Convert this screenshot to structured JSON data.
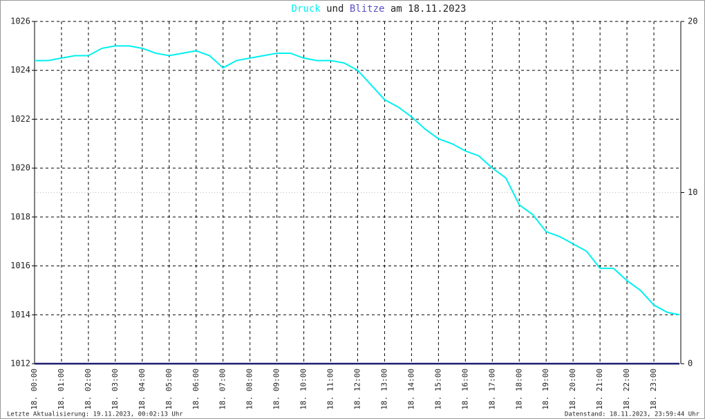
{
  "chart_data": {
    "type": "line",
    "title_connector": "und",
    "title_date": "am 18.11.2023",
    "footer_left": "Letzte Aktualisierung: 19.11.2023, 00:02:13 Uhr",
    "footer_right": "Datenstand: 18.11.2023, 23:59:44 Uhr",
    "x": [
      0,
      0.5,
      1,
      1.5,
      2,
      2.5,
      3,
      3.5,
      4,
      4.5,
      5,
      5.5,
      6,
      6.5,
      7,
      7.5,
      8,
      8.5,
      9,
      9.5,
      10,
      10.5,
      11,
      11.5,
      12,
      12.5,
      13,
      13.5,
      14,
      14.5,
      15,
      15.5,
      16,
      16.5,
      17,
      17.5,
      18,
      18.5,
      19,
      19.5,
      20,
      20.5,
      21,
      21.5,
      22,
      22.5,
      23,
      23.5,
      23.95
    ],
    "series": [
      {
        "name": "Druck",
        "color": "#00f0f0",
        "axis": "y",
        "values": [
          1024.4,
          1024.4,
          1024.5,
          1024.6,
          1024.6,
          1024.9,
          1025.0,
          1025.0,
          1024.9,
          1024.7,
          1024.6,
          1024.7,
          1024.8,
          1024.6,
          1024.1,
          1024.4,
          1024.5,
          1024.6,
          1024.7,
          1024.7,
          1024.5,
          1024.4,
          1024.4,
          1024.3,
          1024.0,
          1023.4,
          1022.8,
          1022.5,
          1022.1,
          1021.6,
          1021.2,
          1021.0,
          1020.7,
          1020.5,
          1020.0,
          1019.6,
          1018.5,
          1018.1,
          1017.4,
          1017.2,
          1016.9,
          1016.6,
          1015.9,
          1015.9,
          1015.4,
          1015.0,
          1014.4,
          1014.1,
          1014.0
        ]
      },
      {
        "name": "Blitze",
        "color": "#1c1c70",
        "axis": "y2",
        "values": [
          0,
          0,
          0,
          0,
          0,
          0,
          0,
          0,
          0,
          0,
          0,
          0,
          0,
          0,
          0,
          0,
          0,
          0,
          0,
          0,
          0,
          0,
          0,
          0,
          0,
          0,
          0,
          0,
          0,
          0,
          0,
          0,
          0,
          0,
          0,
          0,
          0,
          0,
          0,
          0,
          0,
          0,
          0,
          0,
          0,
          0,
          0,
          0,
          0
        ]
      }
    ],
    "xlim": [
      0,
      24
    ],
    "xticks": [
      {
        "value": 0,
        "label": "18. 00:00"
      },
      {
        "value": 1,
        "label": "18. 01:00"
      },
      {
        "value": 2,
        "label": "18. 02:00"
      },
      {
        "value": 3,
        "label": "18. 03:00"
      },
      {
        "value": 4,
        "label": "18. 04:00"
      },
      {
        "value": 5,
        "label": "18. 05:00"
      },
      {
        "value": 6,
        "label": "18. 06:00"
      },
      {
        "value": 7,
        "label": "18. 07:00"
      },
      {
        "value": 8,
        "label": "18. 08:00"
      },
      {
        "value": 9,
        "label": "18. 09:00"
      },
      {
        "value": 10,
        "label": "18. 10:00"
      },
      {
        "value": 11,
        "label": "18. 11:00"
      },
      {
        "value": 12,
        "label": "18. 12:00"
      },
      {
        "value": 13,
        "label": "18. 13:00"
      },
      {
        "value": 14,
        "label": "18. 14:00"
      },
      {
        "value": 15,
        "label": "18. 15:00"
      },
      {
        "value": 16,
        "label": "18. 16:00"
      },
      {
        "value": 17,
        "label": "18. 17:00"
      },
      {
        "value": 18,
        "label": "18. 18:00"
      },
      {
        "value": 19,
        "label": "18. 19:00"
      },
      {
        "value": 20,
        "label": "18. 20:00"
      },
      {
        "value": 21,
        "label": "18. 21:00"
      },
      {
        "value": 22,
        "label": "18. 22:00"
      },
      {
        "value": 23,
        "label": "18. 23:00"
      }
    ],
    "ylim": [
      1012,
      1026
    ],
    "yticks": [
      1012,
      1014,
      1016,
      1018,
      1020,
      1022,
      1024,
      1026
    ],
    "y2lim": [
      0,
      20
    ],
    "y2ticks": [
      0,
      10,
      20
    ],
    "grid": true
  }
}
